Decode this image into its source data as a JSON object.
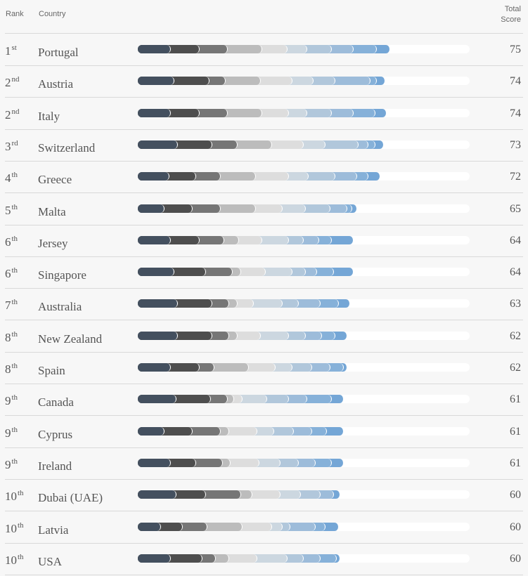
{
  "header": {
    "rank_label": "Rank",
    "country_label": "Country",
    "total_label_line1": "Total",
    "total_label_line2": "Score"
  },
  "segment_colors": [
    "#44505f",
    "#4e4e4e",
    "#767676",
    "#bcbcbc",
    "#dddddd",
    "#ccd7e0",
    "#b1c7db",
    "#9dbcda",
    "#86b1d9",
    "#74a6d6"
  ],
  "scale_max": 100,
  "chart_data": {
    "type": "bar",
    "stacked": true,
    "categories": [
      "Portugal",
      "Austria",
      "Italy",
      "Switzerland",
      "Greece",
      "Malta",
      "Jersey",
      "Singapore",
      "Australia",
      "New Zealand",
      "Spain",
      "Canada",
      "Cyprus",
      "Ireland",
      "Dubai (UAE)",
      "Latvia",
      "USA"
    ],
    "ranks": [
      {
        "num": "1",
        "suffix": "st"
      },
      {
        "num": "2",
        "suffix": "nd"
      },
      {
        "num": "2",
        "suffix": "nd"
      },
      {
        "num": "3",
        "suffix": "rd"
      },
      {
        "num": "4",
        "suffix": "th"
      },
      {
        "num": "5",
        "suffix": "th"
      },
      {
        "num": "6",
        "suffix": "th"
      },
      {
        "num": "6",
        "suffix": "th"
      },
      {
        "num": "7",
        "suffix": "th"
      },
      {
        "num": "8",
        "suffix": "th"
      },
      {
        "num": "8",
        "suffix": "th"
      },
      {
        "num": "9",
        "suffix": "th"
      },
      {
        "num": "9",
        "suffix": "th"
      },
      {
        "num": "9",
        "suffix": "th"
      },
      {
        "num": "10",
        "suffix": "th"
      },
      {
        "num": "10",
        "suffix": "th"
      },
      {
        "num": "10",
        "suffix": "th"
      }
    ],
    "totals": [
      "75",
      "74",
      "74",
      "73",
      "72",
      "65",
      "64",
      "64",
      "63",
      "62",
      "62",
      "61",
      "61",
      "61",
      "60",
      "60",
      "60"
    ],
    "segments": [
      [
        9,
        8.5,
        8.5,
        10.5,
        7.5,
        6,
        7.5,
        6.5,
        7,
        4
      ],
      [
        10,
        10.5,
        5,
        10.5,
        9.5,
        6.5,
        6.5,
        10.5,
        2,
        2.5
      ],
      [
        9,
        8.5,
        8.5,
        10.5,
        8,
        5.5,
        7.5,
        6.5,
        6.5,
        3.5
      ],
      [
        11,
        10.5,
        7.5,
        10.5,
        9.5,
        6.5,
        10,
        3,
        2,
        2.5
      ],
      [
        8.5,
        8,
        7.5,
        10.5,
        10,
        6,
        8,
        6.5,
        3.5,
        3.5
      ],
      [
        7,
        8.5,
        8.5,
        10.5,
        8,
        7,
        7.5,
        5,
        1.5,
        1.5
      ],
      [
        9,
        8.5,
        7.5,
        4.5,
        7,
        8,
        4.5,
        4.5,
        4,
        6.5
      ],
      [
        10,
        9.5,
        8,
        2.5,
        7.5,
        8,
        4,
        3.5,
        5,
        6
      ],
      [
        11,
        10.5,
        5,
        2.5,
        5,
        8.5,
        5,
        6.5,
        5.5,
        3.5
      ],
      [
        11,
        10.5,
        5,
        2.5,
        7,
        8.5,
        5,
        5,
        4,
        3.5
      ],
      [
        9,
        8.5,
        4.5,
        10.5,
        8,
        5,
        6,
        5.5,
        4,
        1
      ],
      [
        10.5,
        10.5,
        5,
        2,
        2.5,
        7.5,
        6.5,
        5.5,
        7.5,
        3.5
      ],
      [
        7,
        8.5,
        8.5,
        2.5,
        8.5,
        5,
        6,
        5.5,
        4.5,
        5
      ],
      [
        9,
        7.5,
        8,
        2.5,
        8.5,
        6.5,
        5.5,
        5,
        5,
        3.5
      ],
      [
        10.5,
        9,
        10.5,
        3.5,
        8.5,
        6,
        6,
        4,
        0,
        2
      ],
      [
        6,
        6.5,
        7.5,
        10.5,
        9,
        3,
        2.5,
        7.5,
        3,
        4
      ],
      [
        9,
        9.5,
        4,
        4,
        8.5,
        9,
        5,
        5,
        5,
        1
      ]
    ]
  }
}
